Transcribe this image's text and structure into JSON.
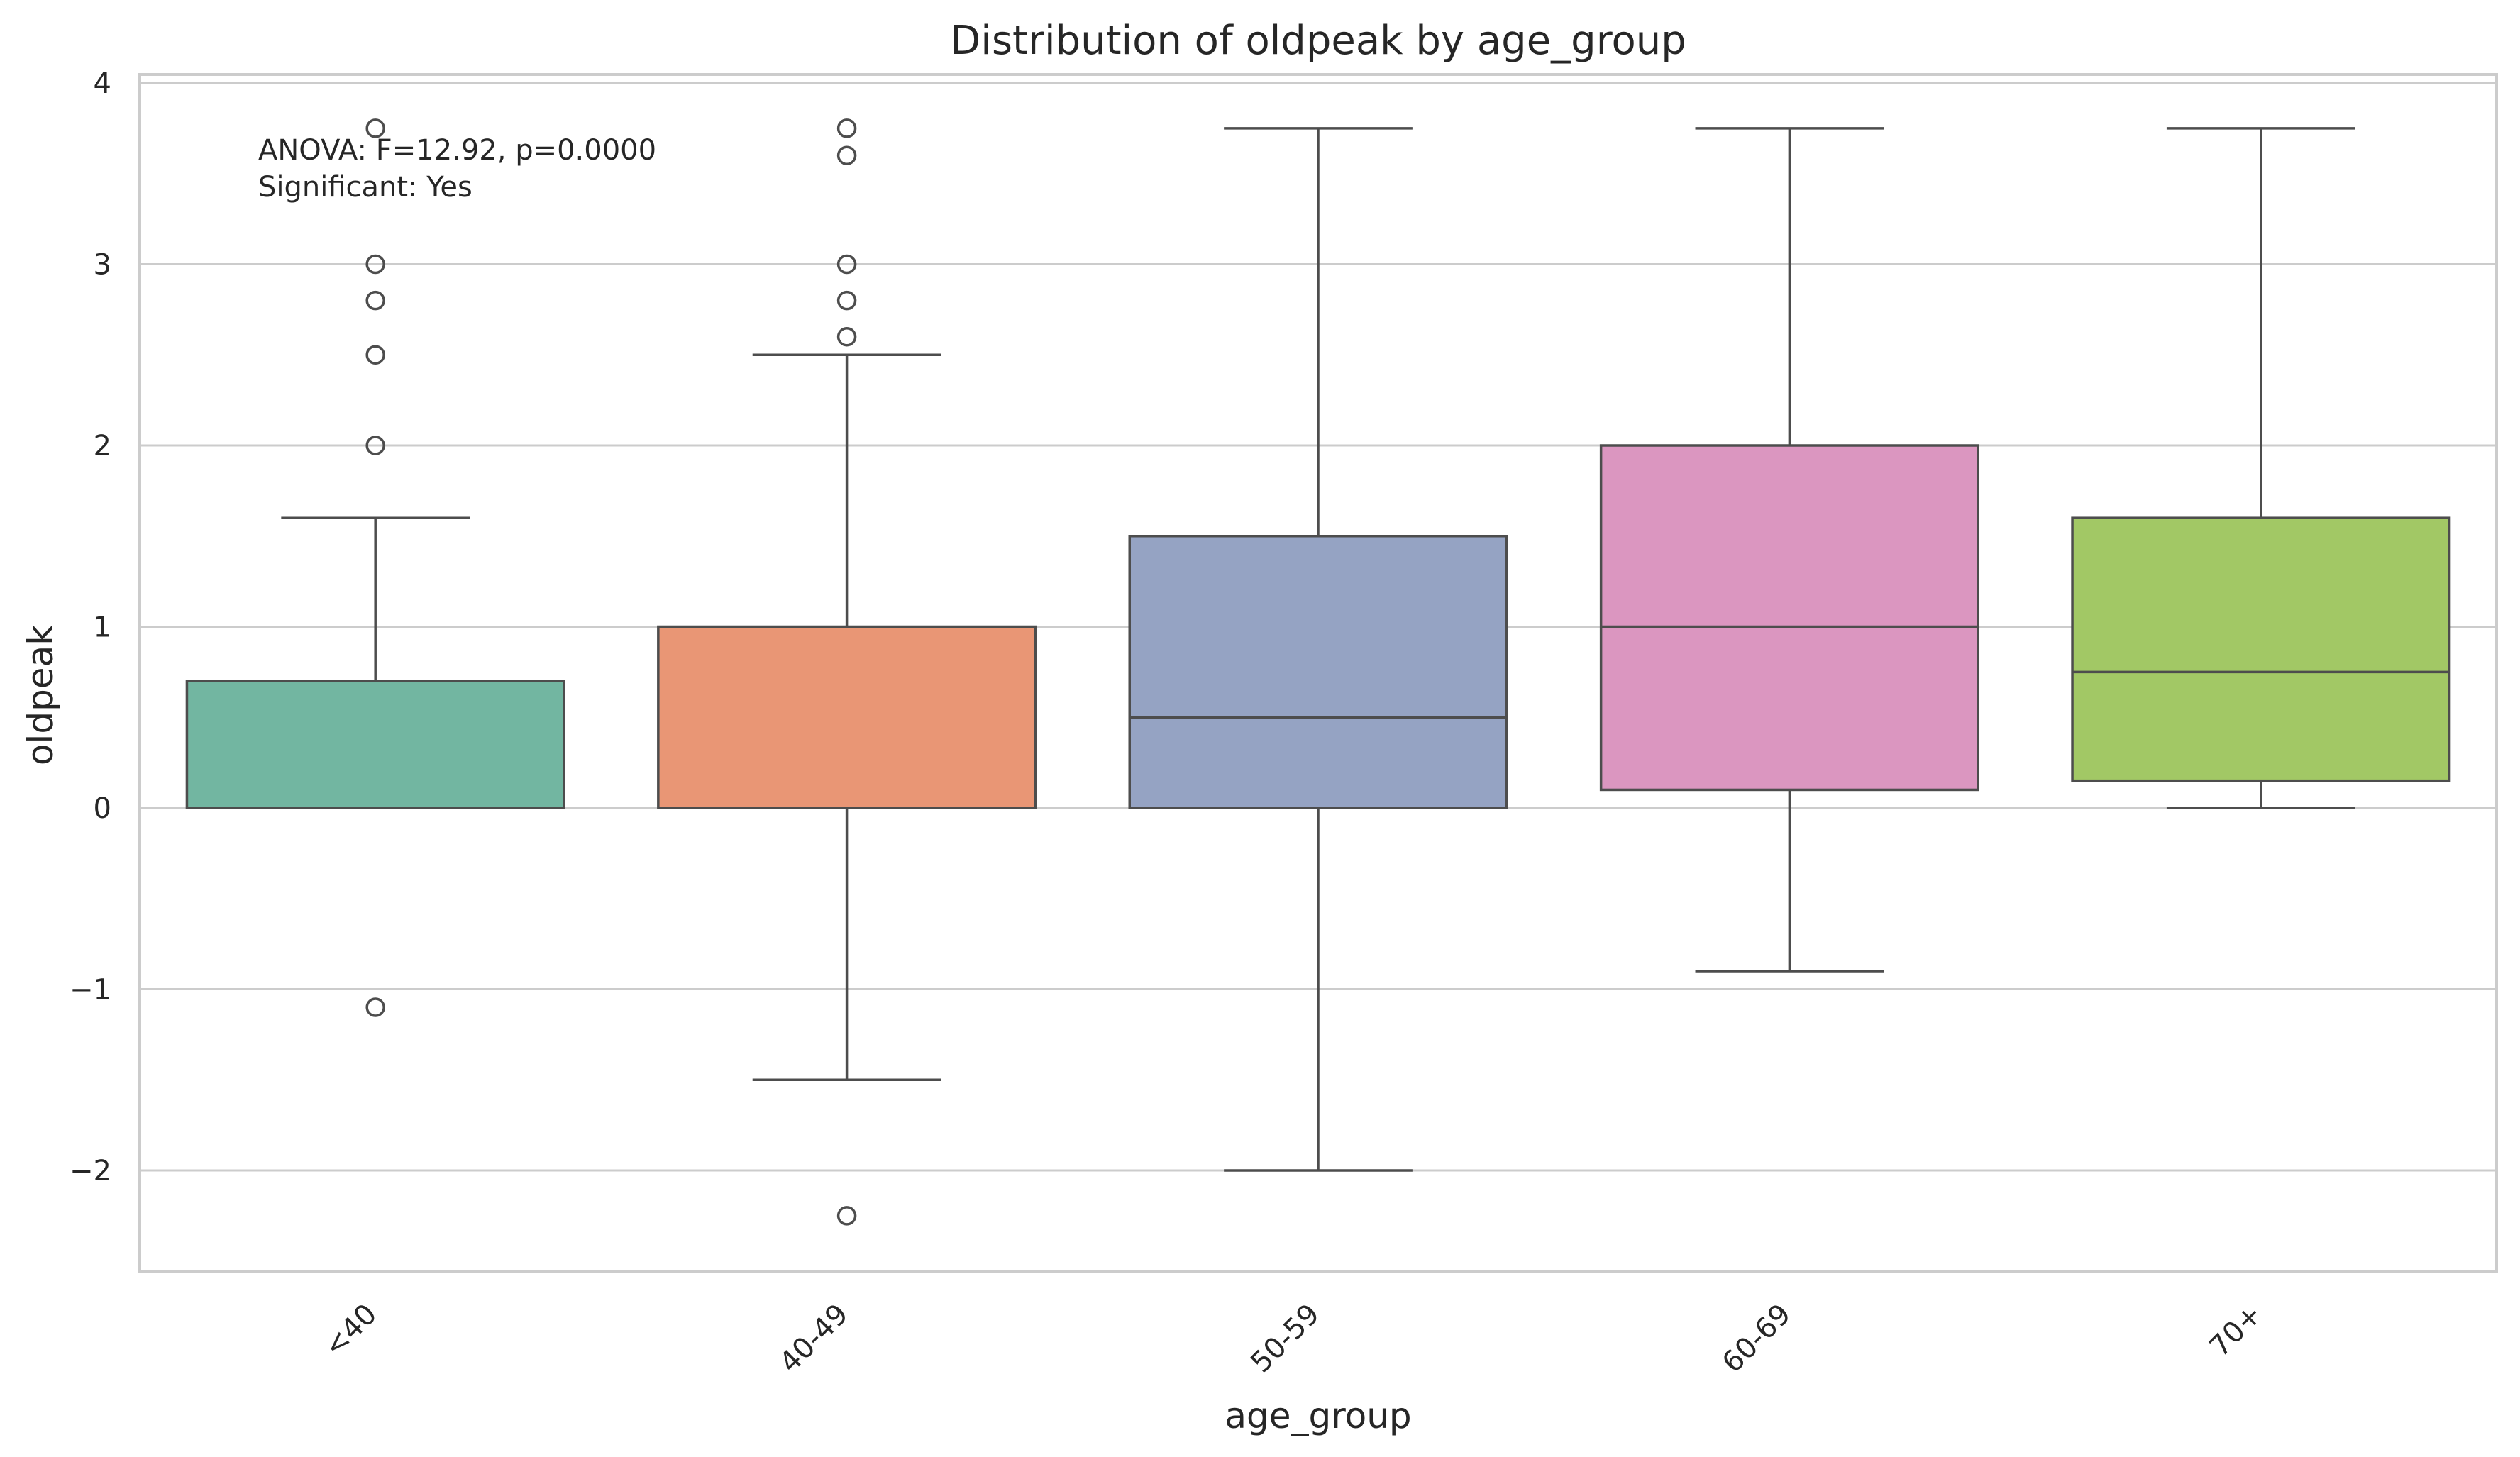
{
  "chart_data": {
    "type": "box",
    "title": "Distribution of oldpeak by age_group",
    "xlabel": "age_group",
    "ylabel": "oldpeak",
    "ylim": [
      -2.55,
      4.05
    ],
    "yticks": [
      -2,
      -1,
      0,
      1,
      2,
      3,
      4
    ],
    "ytick_labels": [
      "−2",
      "−1",
      "0",
      "1",
      "2",
      "3",
      "4"
    ],
    "grid": true,
    "annotation": [
      "ANOVA: F=12.92, p=0.0000",
      "Significant: Yes"
    ],
    "categories": [
      "<40",
      "40-49",
      "50-59",
      "60-69",
      "70+"
    ],
    "boxes": [
      {
        "category": "<40",
        "whislo": 0.0,
        "q1": 0.0,
        "median": 0.0,
        "q3": 0.7,
        "whishi": 1.6,
        "fliers": [
          3.75,
          3.0,
          2.8,
          2.5,
          2.0,
          -1.1
        ],
        "color": "#72b6a1"
      },
      {
        "category": "40-49",
        "whislo": -1.5,
        "q1": 0.0,
        "median": 0.0,
        "q3": 1.0,
        "whishi": 2.5,
        "fliers": [
          3.75,
          3.6,
          3.0,
          2.8,
          2.6,
          -2.25
        ],
        "color": "#e99675"
      },
      {
        "category": "50-59",
        "whislo": -2.0,
        "q1": 0.0,
        "median": 0.5,
        "q3": 1.5,
        "whishi": 3.75,
        "fliers": [],
        "color": "#95a3c3"
      },
      {
        "category": "60-69",
        "whislo": -0.9,
        "q1": 0.1,
        "median": 1.0,
        "q3": 2.0,
        "whishi": 3.75,
        "fliers": [],
        "color": "#db96c0"
      },
      {
        "category": "70+",
        "whislo": 0.0,
        "q1": 0.15,
        "median": 0.75,
        "q3": 1.6,
        "whishi": 3.75,
        "fliers": [],
        "color": "#a2c865"
      }
    ]
  }
}
